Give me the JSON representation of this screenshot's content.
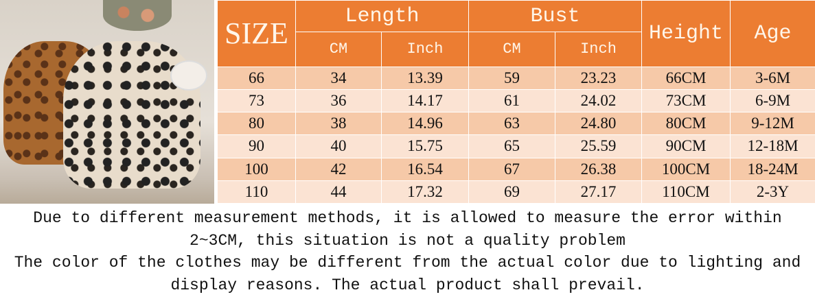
{
  "colors": {
    "header": "#ec7d32",
    "row_dark": "#f6c9a8",
    "row_light": "#fbe3d3"
  },
  "header": {
    "size": "SIZE",
    "length": "Length",
    "bust": "Bust",
    "height": "Height",
    "age": "Age",
    "cm": "CM",
    "inch": "Inch"
  },
  "rows": [
    [
      "66",
      "34",
      "13.39",
      "59",
      "23.23",
      "66CM",
      "3-6M"
    ],
    [
      "73",
      "36",
      "14.17",
      "61",
      "24.02",
      "73CM",
      "6-9M"
    ],
    [
      "80",
      "38",
      "14.96",
      "63",
      "24.80",
      "80CM",
      "9-12M"
    ],
    [
      "90",
      "40",
      "15.75",
      "65",
      "25.59",
      "90CM",
      "12-18M"
    ],
    [
      "100",
      "42",
      "16.54",
      "67",
      "26.38",
      "100CM",
      "18-24M"
    ],
    [
      "110",
      "44",
      "17.32",
      "69",
      "27.17",
      "110CM",
      "2-3Y"
    ]
  ],
  "notes": [
    "Due to different measurement methods, it is allowed to measure the error within",
    "2~3CM, this situation is not a quality problem",
    "The color of the clothes may be different from the actual color due to lighting and",
    "display reasons. The actual product shall prevail."
  ]
}
